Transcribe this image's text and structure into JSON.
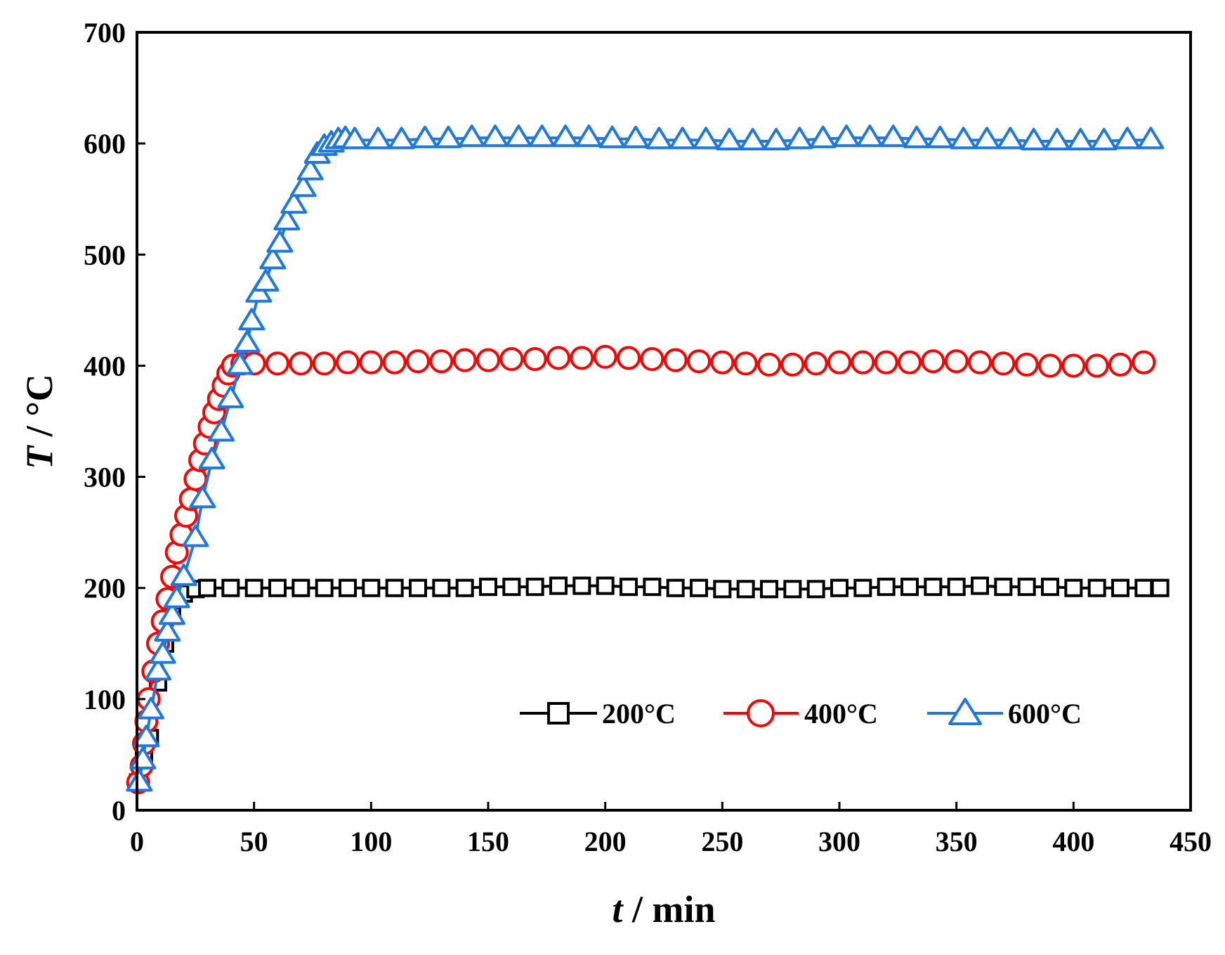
{
  "chart_data": {
    "type": "line",
    "xlabel_var": "t",
    "xlabel_unit": " / min",
    "ylabel_var": "T",
    "ylabel_unit": " / °C",
    "xlim": [
      0,
      450
    ],
    "ylim": [
      0,
      700
    ],
    "xticks": [
      0,
      50,
      100,
      150,
      200,
      250,
      300,
      350,
      400,
      450
    ],
    "yticks": [
      0,
      100,
      200,
      300,
      400,
      500,
      600,
      700
    ],
    "grid": false,
    "legend_position": "bottom-right",
    "series": [
      {
        "name": "200°C",
        "color": "#000000",
        "marker": "square",
        "x": [
          0.5,
          3,
          5.5,
          9,
          12,
          15,
          20,
          25,
          30,
          40,
          50,
          60,
          70,
          80,
          90,
          100,
          110,
          120,
          130,
          140,
          150,
          160,
          170,
          180,
          190,
          200,
          210,
          220,
          230,
          240,
          250,
          260,
          270,
          280,
          290,
          300,
          310,
          320,
          330,
          340,
          350,
          360,
          370,
          380,
          390,
          400,
          410,
          420,
          430,
          437
        ],
        "y": [
          25,
          45,
          65,
          115,
          150,
          175,
          195,
          199,
          200,
          200,
          200,
          200,
          200,
          200,
          200,
          200,
          200,
          200,
          200,
          200,
          201,
          201,
          201,
          202,
          202,
          202,
          201,
          201,
          200,
          200,
          199,
          199,
          199,
          199,
          199,
          200,
          200,
          201,
          201,
          201,
          201,
          202,
          201,
          201,
          201,
          200,
          200,
          200,
          200,
          200
        ]
      },
      {
        "name": "400°C",
        "color": "#ff0000",
        "marker": "circle",
        "x": [
          0.5,
          2,
          3,
          4,
          5,
          7,
          9,
          11,
          13,
          15,
          17,
          19,
          21,
          23,
          25,
          27,
          29,
          31,
          33,
          35,
          37,
          39,
          41,
          45,
          50,
          60,
          70,
          80,
          90,
          100,
          110,
          120,
          130,
          140,
          150,
          160,
          170,
          180,
          190,
          200,
          210,
          220,
          230,
          240,
          250,
          260,
          270,
          280,
          290,
          300,
          310,
          320,
          330,
          340,
          350,
          360,
          370,
          380,
          390,
          400,
          410,
          420,
          430
        ],
        "y": [
          25,
          40,
          60,
          80,
          100,
          125,
          150,
          170,
          190,
          210,
          232,
          248,
          265,
          280,
          298,
          315,
          330,
          345,
          358,
          370,
          382,
          393,
          400,
          402,
          402,
          402,
          402,
          402,
          403,
          403,
          403,
          404,
          404,
          405,
          405,
          406,
          406,
          407,
          407,
          408,
          407,
          406,
          405,
          404,
          403,
          402,
          401,
          401,
          402,
          403,
          403,
          403,
          403,
          404,
          404,
          403,
          402,
          401,
          400,
          400,
          400,
          401,
          403
        ]
      },
      {
        "name": "600°C",
        "color": "#1f77e0",
        "marker": "triangle",
        "x": [
          1,
          2.5,
          4,
          6,
          9,
          11,
          13,
          15,
          17,
          20,
          25,
          28,
          32,
          36,
          40,
          44,
          47,
          49,
          52,
          55,
          58,
          61,
          64,
          67,
          71,
          74,
          77,
          80,
          83,
          86,
          89,
          93,
          103,
          113,
          123,
          133,
          143,
          153,
          163,
          173,
          183,
          193,
          203,
          213,
          223,
          233,
          243,
          253,
          263,
          273,
          283,
          293,
          303,
          313,
          323,
          333,
          343,
          353,
          363,
          373,
          383,
          393,
          403,
          413,
          423,
          433
        ],
        "y": [
          25,
          45,
          65,
          90,
          125,
          140,
          160,
          175,
          190,
          210,
          245,
          280,
          315,
          340,
          370,
          400,
          420,
          440,
          465,
          475,
          495,
          510,
          530,
          545,
          560,
          575,
          590,
          597,
          600,
          603,
          604,
          603,
          603,
          603,
          604,
          604,
          605,
          605,
          605,
          605,
          605,
          605,
          604,
          604,
          603,
          603,
          603,
          602,
          602,
          602,
          603,
          604,
          605,
          605,
          605,
          604,
          604,
          603,
          603,
          603,
          602,
          602,
          602,
          602,
          603,
          603
        ]
      }
    ]
  }
}
